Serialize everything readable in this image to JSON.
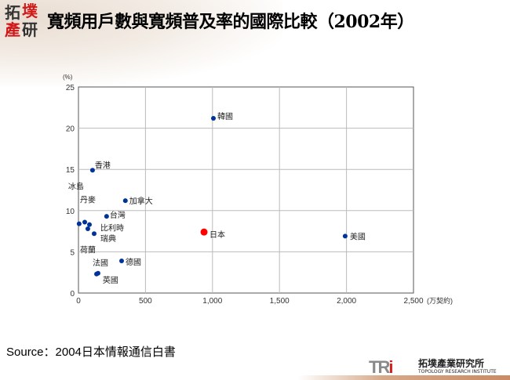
{
  "header": {
    "logo_text": [
      "拓",
      "墣",
      "產",
      "研"
    ],
    "title": "寬頻用戶數與寬頻普及率的國際比較（2002年）"
  },
  "chart_data": {
    "type": "scatter",
    "title": "寬頻用戶數與寬頻普及率的國際比較（2002年）",
    "xlabel": "(万契約)",
    "ylabel": "(%)",
    "xlim": [
      0,
      2500
    ],
    "ylim": [
      0,
      25
    ],
    "xticks": [
      "0",
      "500",
      "1,000",
      "1,500",
      "2,000",
      "2,500"
    ],
    "xtick_values": [
      0,
      500,
      1000,
      1500,
      2000,
      2500
    ],
    "yticks": [
      "0",
      "5",
      "10",
      "15",
      "20",
      "25"
    ],
    "ytick_values": [
      0,
      5,
      10,
      15,
      20,
      25
    ],
    "grid": true,
    "points": [
      {
        "label": "韓國",
        "x": 1007,
        "y": 21.2,
        "color": "#003399"
      },
      {
        "label": "香港",
        "x": 105,
        "y": 14.9,
        "color": "#003399"
      },
      {
        "label": "加拿大",
        "x": 350,
        "y": 11.2,
        "color": "#003399"
      },
      {
        "label": "冰島",
        "x": 5,
        "y": 8.4,
        "color": "#003399"
      },
      {
        "label": "丹麥",
        "x": 47,
        "y": 8.6,
        "color": "#003399"
      },
      {
        "label": "台灣",
        "x": 210,
        "y": 9.3,
        "color": "#003399"
      },
      {
        "label": "比利時",
        "x": 82,
        "y": 8.3,
        "color": "#003399"
      },
      {
        "label": "瑞典",
        "x": 70,
        "y": 7.8,
        "color": "#003399"
      },
      {
        "label": "荷蘭",
        "x": 117,
        "y": 7.2,
        "color": "#003399"
      },
      {
        "label": "日本",
        "x": 937,
        "y": 7.4,
        "color": "#ff0000"
      },
      {
        "label": "美國",
        "x": 1990,
        "y": 6.9,
        "color": "#003399"
      },
      {
        "label": "德國",
        "x": 322,
        "y": 3.9,
        "color": "#003399"
      },
      {
        "label": "法國",
        "x": 135,
        "y": 2.3,
        "color": "#003399"
      },
      {
        "label": "英國",
        "x": 146,
        "y": 2.4,
        "color": "#003399"
      }
    ]
  },
  "source": "Source：2004日本情報通信白書",
  "footer": {
    "brand_letters": "TR",
    "brand_i": "i",
    "brand_cn": "拓墣產業研究所",
    "brand_en": "TOPOLOGY RESEARCH INSTITUTE"
  }
}
